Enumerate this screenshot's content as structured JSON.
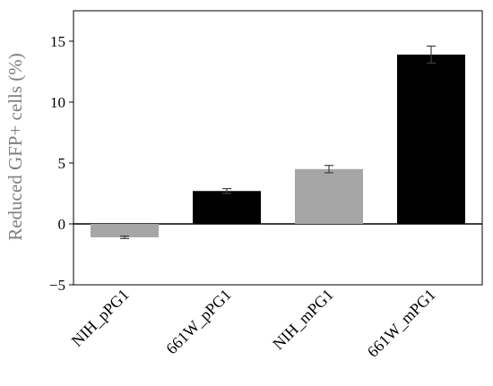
{
  "chart_data": {
    "type": "bar",
    "categories": [
      "NIH_pPG1",
      "661W_pPG1",
      "NIH_mPG1",
      "661W_mPG1"
    ],
    "values": [
      -1.1,
      2.7,
      4.5,
      13.9
    ],
    "errors": [
      0.1,
      0.2,
      0.3,
      0.7
    ],
    "bar_colors": [
      "#a6a6a6",
      "#000000",
      "#a6a6a6",
      "#000000"
    ],
    "title": "",
    "xlabel": "",
    "ylabel": "Reduced GFP+ cells (%)",
    "ylim": [
      -5,
      17.5
    ],
    "yticks": [
      -5,
      0,
      5,
      10,
      15
    ],
    "ytick_labels": [
      "−5",
      "0",
      "5",
      "10",
      "15"
    ],
    "grid": false,
    "legend": "none"
  }
}
